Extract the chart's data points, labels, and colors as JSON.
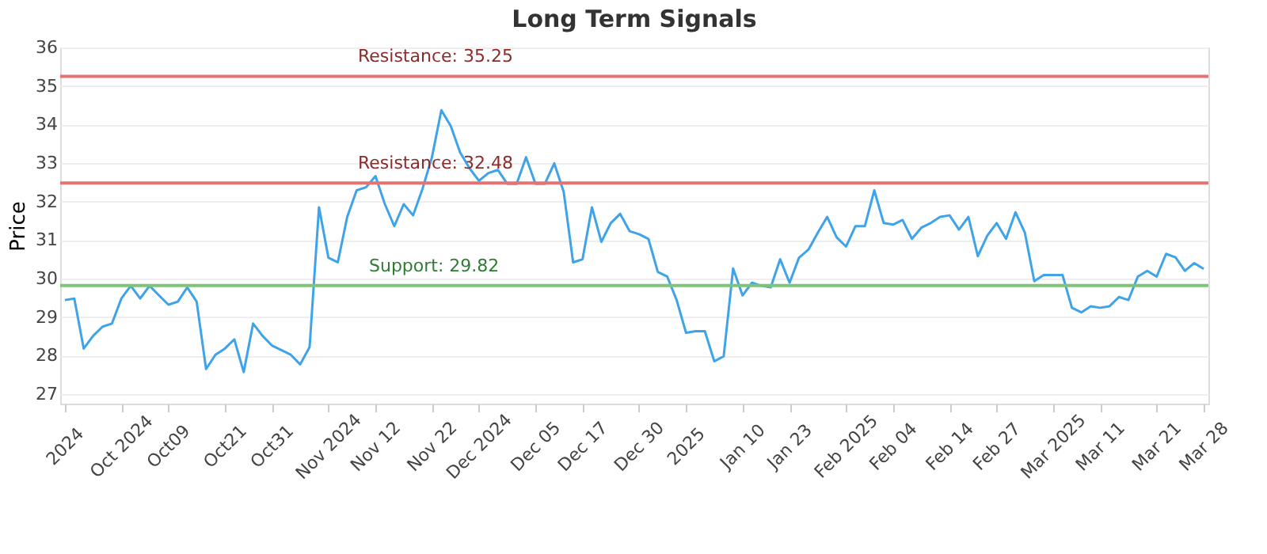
{
  "chart_data": {
    "type": "line",
    "title": "Long Term Signals",
    "ylabel": "Price",
    "categories": [
      "2024",
      null,
      null,
      null,
      null,
      null,
      "Oct 2024",
      null,
      null,
      null,
      null,
      "Oct09",
      null,
      null,
      null,
      null,
      null,
      "Oct21",
      null,
      null,
      null,
      null,
      "Oct31",
      null,
      null,
      null,
      null,
      null,
      "Nov 2024",
      null,
      null,
      null,
      null,
      "Nov 12",
      null,
      null,
      null,
      null,
      null,
      "Nov 22",
      null,
      null,
      null,
      null,
      "Dec 2024",
      null,
      null,
      null,
      null,
      null,
      "Dec 05",
      null,
      null,
      null,
      null,
      "Dec 17",
      null,
      null,
      null,
      null,
      null,
      "Dec 30",
      null,
      null,
      null,
      null,
      "2025",
      null,
      null,
      null,
      null,
      null,
      "Jan 10",
      null,
      null,
      null,
      null,
      "Jan 23",
      null,
      null,
      null,
      null,
      null,
      "Feb 2025",
      null,
      null,
      null,
      null,
      "Feb 04",
      null,
      null,
      null,
      null,
      null,
      "Feb 14",
      null,
      null,
      null,
      null,
      "Feb 27",
      null,
      null,
      null,
      null,
      null,
      "Mar 2025",
      null,
      null,
      null,
      null,
      "Mar 11",
      null,
      null,
      null,
      null,
      null,
      "Mar 21",
      null,
      null,
      null,
      null,
      "Mar 28"
    ],
    "series": [
      {
        "color": "#3fa3ea",
        "values": [
          29.44,
          29.48,
          28.18,
          28.51,
          28.75,
          28.83,
          29.48,
          29.81,
          29.48,
          29.81,
          29.56,
          29.32,
          29.4,
          29.77,
          29.4,
          27.65,
          28.02,
          28.18,
          28.42,
          27.57,
          28.83,
          28.51,
          28.26,
          28.14,
          28.02,
          27.77,
          28.22,
          31.85,
          30.54,
          30.42,
          31.6,
          32.29,
          32.37,
          32.66,
          31.93,
          31.36,
          31.93,
          31.64,
          32.33,
          33.15,
          34.37,
          33.96,
          33.27,
          32.86,
          32.54,
          32.74,
          32.82,
          32.46,
          32.46,
          33.15,
          32.46,
          32.46,
          32.99,
          32.25,
          30.42,
          30.5,
          31.85,
          30.95,
          31.44,
          31.68,
          31.23,
          31.15,
          31.03,
          30.17,
          30.05,
          29.44,
          28.59,
          28.63,
          28.63,
          27.85,
          27.98,
          30.26,
          29.56,
          29.89,
          29.81,
          29.77,
          30.5,
          29.89,
          30.54,
          30.75,
          31.19,
          31.6,
          31.07,
          30.83,
          31.36,
          31.36,
          32.29,
          31.44,
          31.4,
          31.52,
          31.03,
          31.32,
          31.44,
          31.6,
          31.64,
          31.27,
          31.6,
          30.58,
          31.11,
          31.44,
          31.03,
          31.72,
          31.19,
          29.93,
          30.09,
          30.09,
          30.09,
          29.24,
          29.12,
          29.28,
          29.24,
          29.28,
          29.52,
          29.44,
          30.05,
          30.2,
          30.05,
          30.64,
          30.55,
          30.2,
          30.4,
          30.25
        ]
      }
    ],
    "ylim": [
      26.75,
      36
    ],
    "yticks": [
      27,
      28,
      29,
      30,
      31,
      32,
      33,
      34,
      35,
      36
    ],
    "grid": "y",
    "marker": "none",
    "line_style": "solid",
    "ref_lines": [
      {
        "axis": "y",
        "value": 35.25,
        "label": "Resistance: 35.25",
        "color": "#e57373"
      },
      {
        "axis": "y",
        "value": 32.48,
        "label": "Resistance: 32.48",
        "color": "#e57373"
      },
      {
        "axis": "y",
        "value": 29.82,
        "label": "Support: 29.82",
        "color": "#7cc576"
      }
    ]
  }
}
